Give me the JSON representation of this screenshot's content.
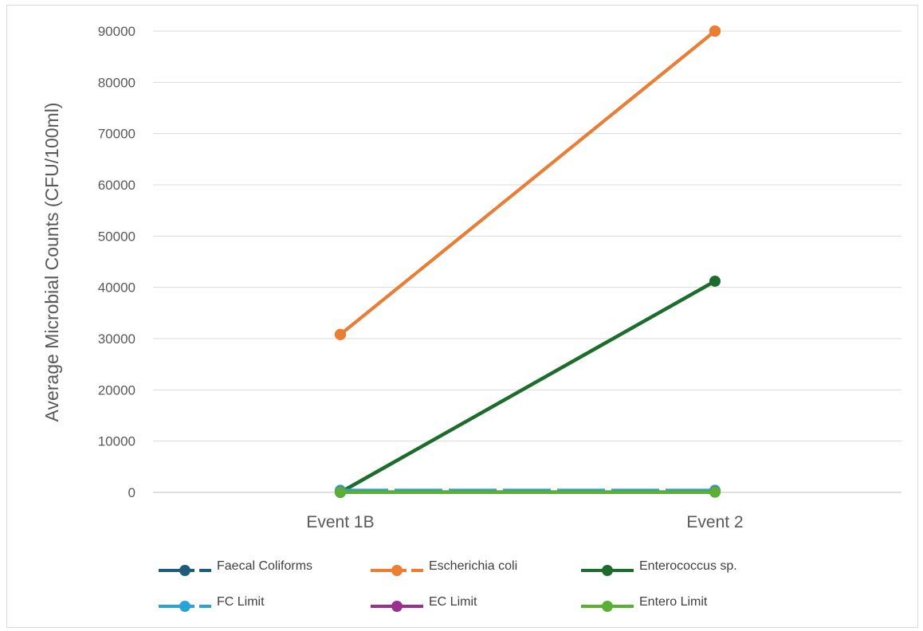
{
  "chart_data": {
    "type": "line",
    "title": "",
    "xlabel": "",
    "ylabel": "Average Microbial Counts (CFU/100ml)",
    "categories": [
      "Event 1B",
      "Event 2"
    ],
    "ylim": [
      0,
      90000
    ],
    "yticks": [
      0,
      10000,
      20000,
      30000,
      40000,
      50000,
      60000,
      70000,
      80000,
      90000
    ],
    "grid": "horizontal",
    "legend_position": "bottom",
    "series": [
      {
        "name": "Faecal Coliforms",
        "values": [
          30800,
          90000
        ],
        "color": "#1f5c7a",
        "style": "dashed"
      },
      {
        "name": "Escherichia coli",
        "values": [
          30800,
          90000
        ],
        "color": "#ed7d31",
        "style": "dashed"
      },
      {
        "name": "Enterococcus sp.",
        "values": [
          0,
          41200
        ],
        "color": "#1e6b2e",
        "style": "solid"
      },
      {
        "name": "FC  Limit",
        "values": [
          400,
          400
        ],
        "color": "#2aa3d8",
        "style": "dashed"
      },
      {
        "name": "EC Limit",
        "values": [
          100,
          100
        ],
        "color": "#9b2f8e",
        "style": "solid"
      },
      {
        "name": "Entero Limit",
        "values": [
          40,
          40
        ],
        "color": "#5ab033",
        "style": "solid"
      }
    ]
  }
}
